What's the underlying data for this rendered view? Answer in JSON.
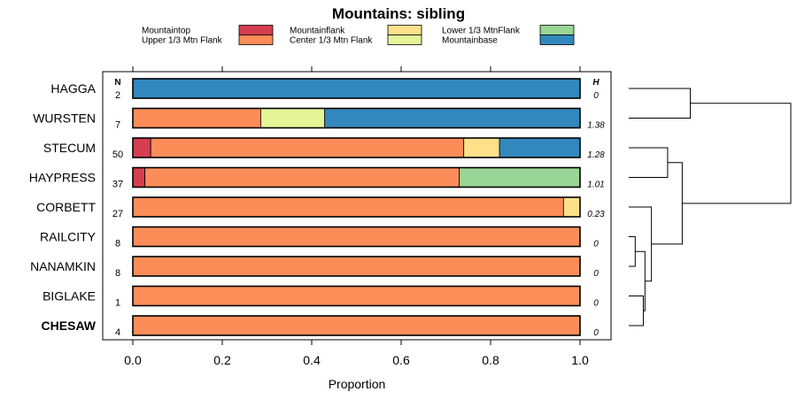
{
  "chart_data": {
    "type": "bar",
    "orientation": "horizontal",
    "stacked": true,
    "title": "Mountains: sibling",
    "xlabel": "Proportion",
    "xlim": [
      0,
      1
    ],
    "xticks": [
      "0.0",
      "0.2",
      "0.4",
      "0.6",
      "0.8",
      "1.0"
    ],
    "n_header": "N",
    "h_header": "H",
    "legend": [
      {
        "name": "Mountaintop",
        "color": "#d53e4f"
      },
      {
        "name": "Upper 1/3 Mtn Flank",
        "color": "#fc8d59"
      },
      {
        "name": "Mountainflank",
        "color": "#fee08b"
      },
      {
        "name": "Center 1/3 Mtn Flank",
        "color": "#e6f598"
      },
      {
        "name": "Lower 1/3 MtnFlank",
        "color": "#99d594"
      },
      {
        "name": "Mountainbase",
        "color": "#3288bd"
      }
    ],
    "rows": [
      {
        "label": "HAGGA",
        "n": "2",
        "h": "0",
        "bold": false,
        "segments": [
          {
            "cat": "Mountainbase",
            "value": 1.0
          }
        ]
      },
      {
        "label": "WURSTEN",
        "n": "7",
        "h": "1.38",
        "bold": false,
        "segments": [
          {
            "cat": "Upper 1/3 Mtn Flank",
            "value": 0.286
          },
          {
            "cat": "Center 1/3 Mtn Flank",
            "value": 0.143
          },
          {
            "cat": "Mountainbase",
            "value": 0.571
          }
        ]
      },
      {
        "label": "STECUM",
        "n": "50",
        "h": "1.28",
        "bold": false,
        "segments": [
          {
            "cat": "Mountaintop",
            "value": 0.04
          },
          {
            "cat": "Upper 1/3 Mtn Flank",
            "value": 0.7
          },
          {
            "cat": "Mountainflank",
            "value": 0.08
          },
          {
            "cat": "Mountainbase",
            "value": 0.18
          }
        ]
      },
      {
        "label": "HAYPRESS",
        "n": "37",
        "h": "1.01",
        "bold": false,
        "segments": [
          {
            "cat": "Mountaintop",
            "value": 0.027
          },
          {
            "cat": "Upper 1/3 Mtn Flank",
            "value": 0.703
          },
          {
            "cat": "Lower 1/3 MtnFlank",
            "value": 0.27
          }
        ]
      },
      {
        "label": "CORBETT",
        "n": "27",
        "h": "0.23",
        "bold": false,
        "segments": [
          {
            "cat": "Upper 1/3 Mtn Flank",
            "value": 0.963
          },
          {
            "cat": "Mountainflank",
            "value": 0.037
          }
        ]
      },
      {
        "label": "RAILCITY",
        "n": "8",
        "h": "0",
        "bold": false,
        "segments": [
          {
            "cat": "Upper 1/3 Mtn Flank",
            "value": 1.0
          }
        ]
      },
      {
        "label": "NANAMKIN",
        "n": "8",
        "h": "0",
        "bold": false,
        "segments": [
          {
            "cat": "Upper 1/3 Mtn Flank",
            "value": 1.0
          }
        ]
      },
      {
        "label": "BIGLAKE",
        "n": "1",
        "h": "0",
        "bold": false,
        "segments": [
          {
            "cat": "Upper 1/3 Mtn Flank",
            "value": 1.0
          }
        ]
      },
      {
        "label": "CHESAW",
        "n": "4",
        "h": "0",
        "bold": true,
        "segments": [
          {
            "cat": "Upper 1/3 Mtn Flank",
            "value": 1.0
          }
        ]
      }
    ],
    "dendrogram": {
      "leaves": [
        "HAGGA",
        "WURSTEN",
        "STECUM",
        "HAYPRESS",
        "CORBETT",
        "RAILCITY",
        "NANAMKIN",
        "BIGLAKE",
        "CHESAW"
      ],
      "merges": [
        {
          "left": "RAILCITY",
          "right": "NANAMKIN",
          "height": 0.04
        },
        {
          "left": "BIGLAKE",
          "right": "CHESAW",
          "height": 0.09
        },
        {
          "left": "m0",
          "right": "m1",
          "height": 0.1
        },
        {
          "left": "CORBETT",
          "right": "m2",
          "height": 0.14
        },
        {
          "left": "HAGGA",
          "right": "WURSTEN",
          "height": 0.38
        },
        {
          "left": "STECUM",
          "right": "HAYPRESS",
          "height": 0.24
        },
        {
          "left": "m5",
          "right": "m3",
          "height": 0.33
        },
        {
          "left": "m4",
          "right": "m6",
          "height": 1.0
        }
      ]
    }
  }
}
